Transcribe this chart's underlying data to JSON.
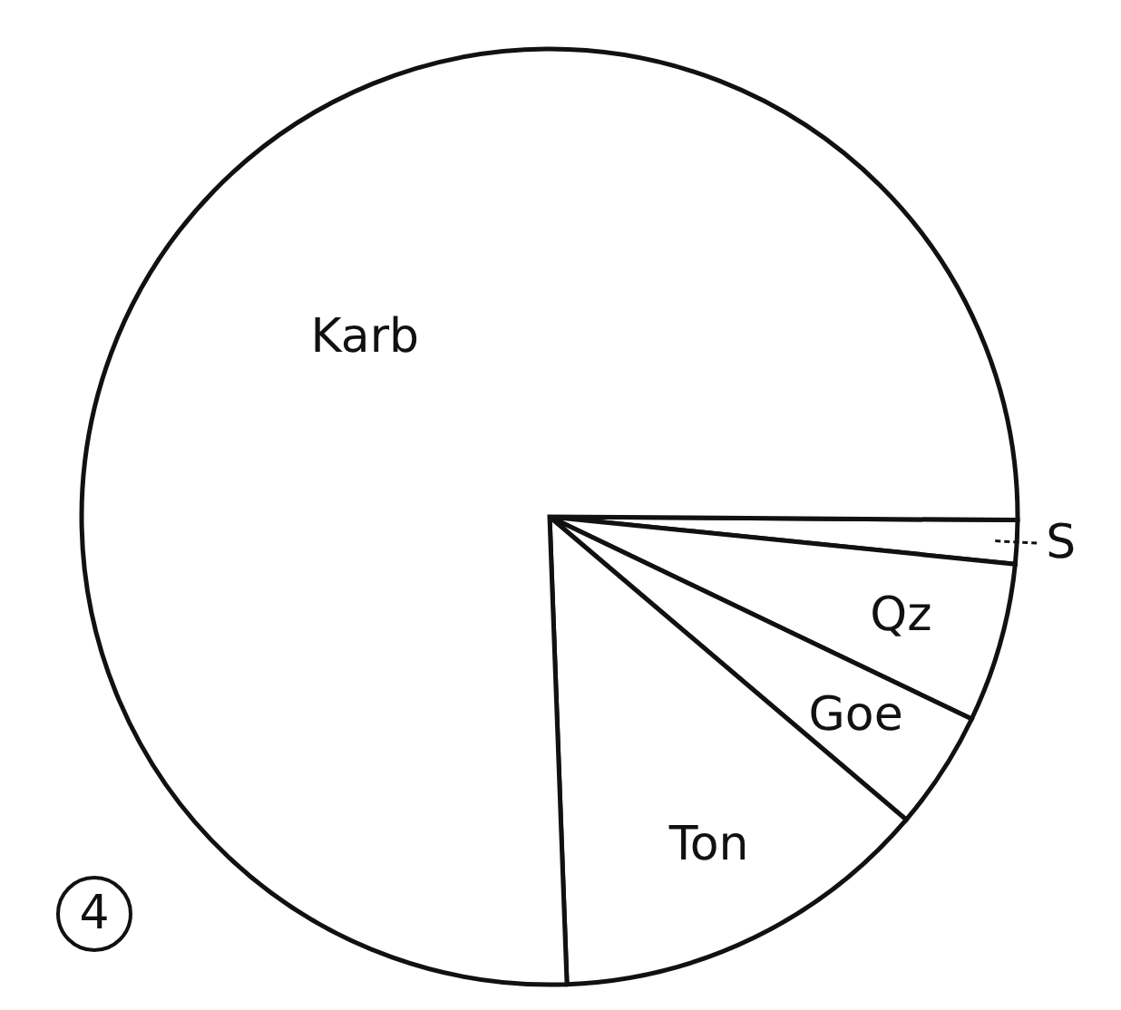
{
  "chart_data": {
    "type": "pie",
    "categories": [
      "S",
      "Qz",
      "Goe",
      "Ton",
      "Karb"
    ],
    "values": [
      1.5,
      5.5,
      4.1,
      13.2,
      75.7
    ],
    "colors": [
      "#ffffff",
      "#ffffff",
      "#ffffff",
      "#ffffff",
      "#ffffff"
    ],
    "annotations": [
      "4"
    ]
  }
}
